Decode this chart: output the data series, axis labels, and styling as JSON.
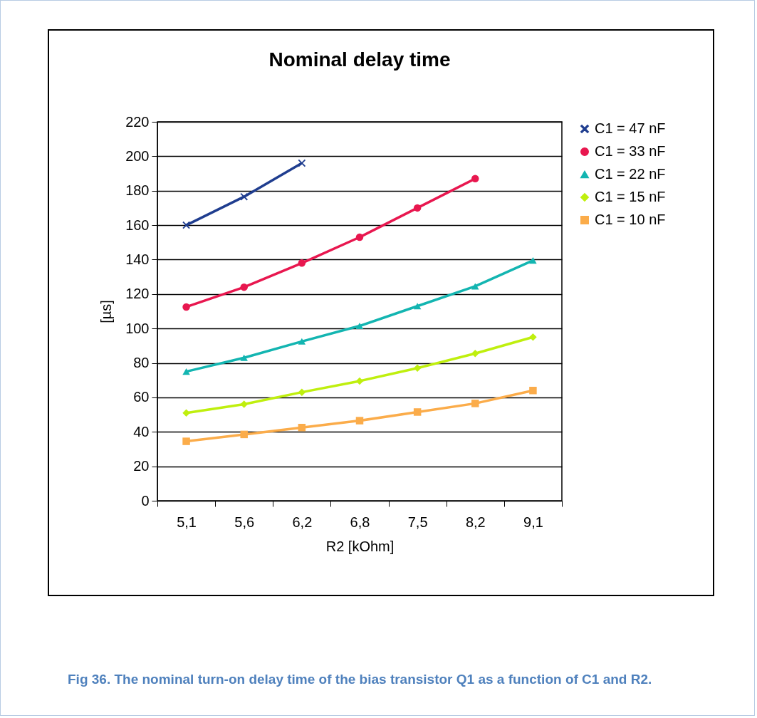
{
  "chart_data": {
    "type": "line",
    "title": "Nominal delay time",
    "xlabel": "R2 [kOhm]",
    "ylabel": "[µs]",
    "categories": [
      "5,1",
      "5,6",
      "6,2",
      "6,8",
      "7,5",
      "8,2",
      "9,1"
    ],
    "series": [
      {
        "name": "C1 = 47 nF",
        "color": "#1f3d8f",
        "marker": "cross",
        "values": [
          160,
          176.5,
          196,
          null,
          null,
          null,
          null
        ]
      },
      {
        "name": "C1 = 33 nF",
        "color": "#e8174f",
        "marker": "circle",
        "values": [
          112.5,
          124,
          138,
          153,
          170,
          187,
          null
        ]
      },
      {
        "name": "C1 = 22 nF",
        "color": "#13b5b1",
        "marker": "triangle",
        "values": [
          75,
          83,
          92.5,
          101.5,
          113,
          124.5,
          139.5
        ]
      },
      {
        "name": "C1 = 15 nF",
        "color": "#bfef0e",
        "marker": "diamond",
        "values": [
          51,
          56,
          63,
          69.5,
          77,
          85.5,
          95
        ]
      },
      {
        "name": "C1 = 10 nF",
        "color": "#fbac4a",
        "marker": "square",
        "values": [
          34.5,
          38.5,
          42.5,
          46.5,
          51.5,
          56.5,
          64
        ]
      }
    ],
    "ylim": [
      0,
      220
    ],
    "yticks": [
      0,
      20,
      40,
      60,
      80,
      100,
      120,
      140,
      160,
      180,
      200,
      220
    ],
    "grid": "y",
    "legend": "right",
    "annotations": [
      "Fig 36. The nominal turn-on delay time of the bias transistor Q1 as a function of C1 and R2."
    ]
  }
}
